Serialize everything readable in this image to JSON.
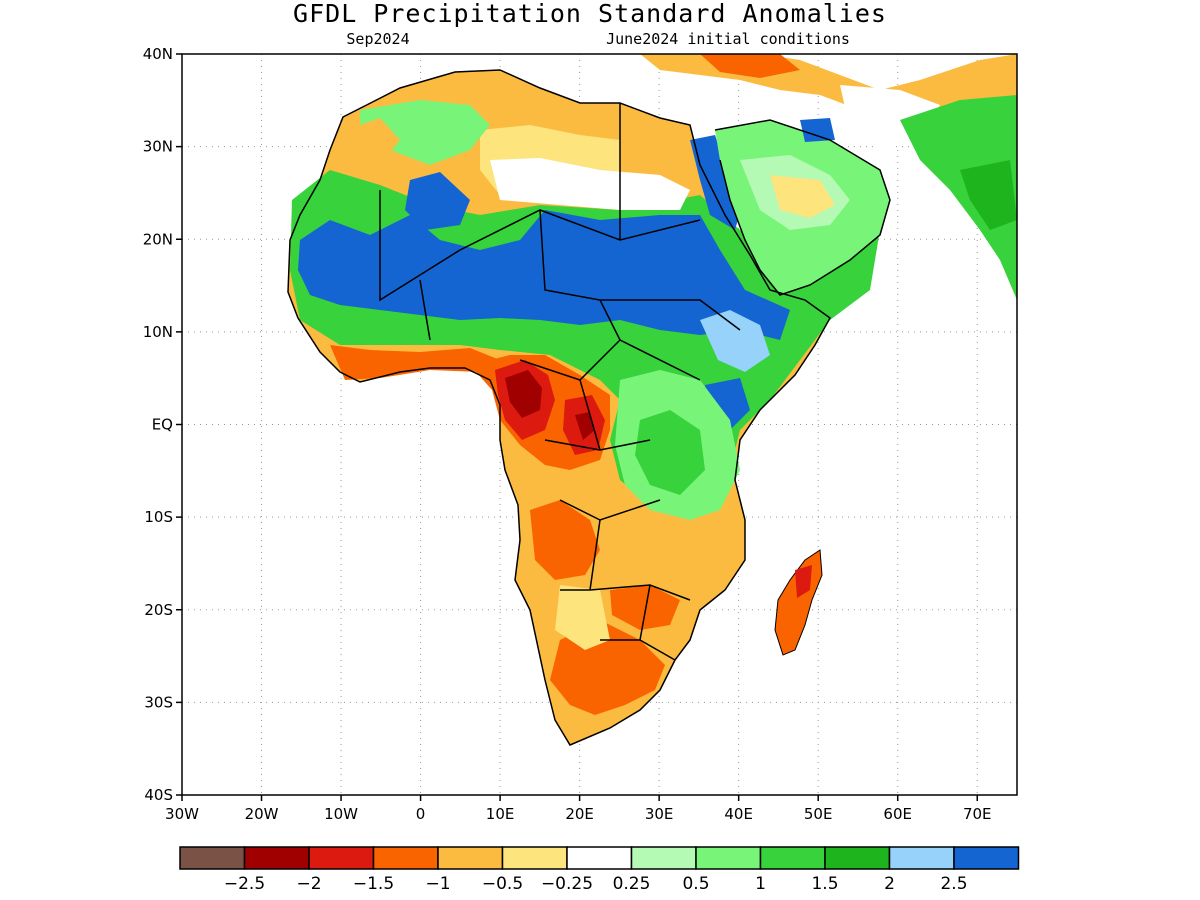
{
  "title": "GFDL Precipitation Standard Anomalies",
  "valid_month": "Sep2024",
  "initial_conditions": "June2024 initial conditions",
  "lat_labels": [
    "40N",
    "30N",
    "20N",
    "10N",
    "EQ",
    "10S",
    "20S",
    "30S",
    "40S"
  ],
  "lon_labels": [
    "30W",
    "20W",
    "10W",
    "0",
    "10E",
    "20E",
    "30E",
    "40E",
    "50E",
    "60E",
    "70E"
  ],
  "colorbar": {
    "colors": [
      "#7a5246",
      "#a00000",
      "#dc1a10",
      "#fa6400",
      "#fbbb40",
      "#fde47c",
      "#ffffff",
      "#b4fab4",
      "#78f578",
      "#37d23c",
      "#1eb41e",
      "#96d2fa",
      "#1464d2"
    ],
    "labels": [
      "−2.5",
      "−2",
      "−1.5",
      "−1",
      "−0.5",
      "−0.25",
      "0.25",
      "0.5",
      "1",
      "1.5",
      "2",
      "2.5"
    ]
  },
  "map_data": {
    "lon_range": [
      -30,
      75
    ],
    "lat_range": [
      -40,
      40
    ],
    "colors": {
      "strong_dry": "#a00000",
      "dry": "#dc1a10",
      "moderate_dry": "#fa6400",
      "mild_dry": "#fbbb40",
      "slight_dry": "#fde47c",
      "slight_wet": "#b4fab4",
      "mild_wet": "#78f578",
      "moderate_wet": "#37d23c",
      "wet": "#1eb41e",
      "very_wet_light": "#96d2fa",
      "very_wet": "#1464d2"
    }
  }
}
